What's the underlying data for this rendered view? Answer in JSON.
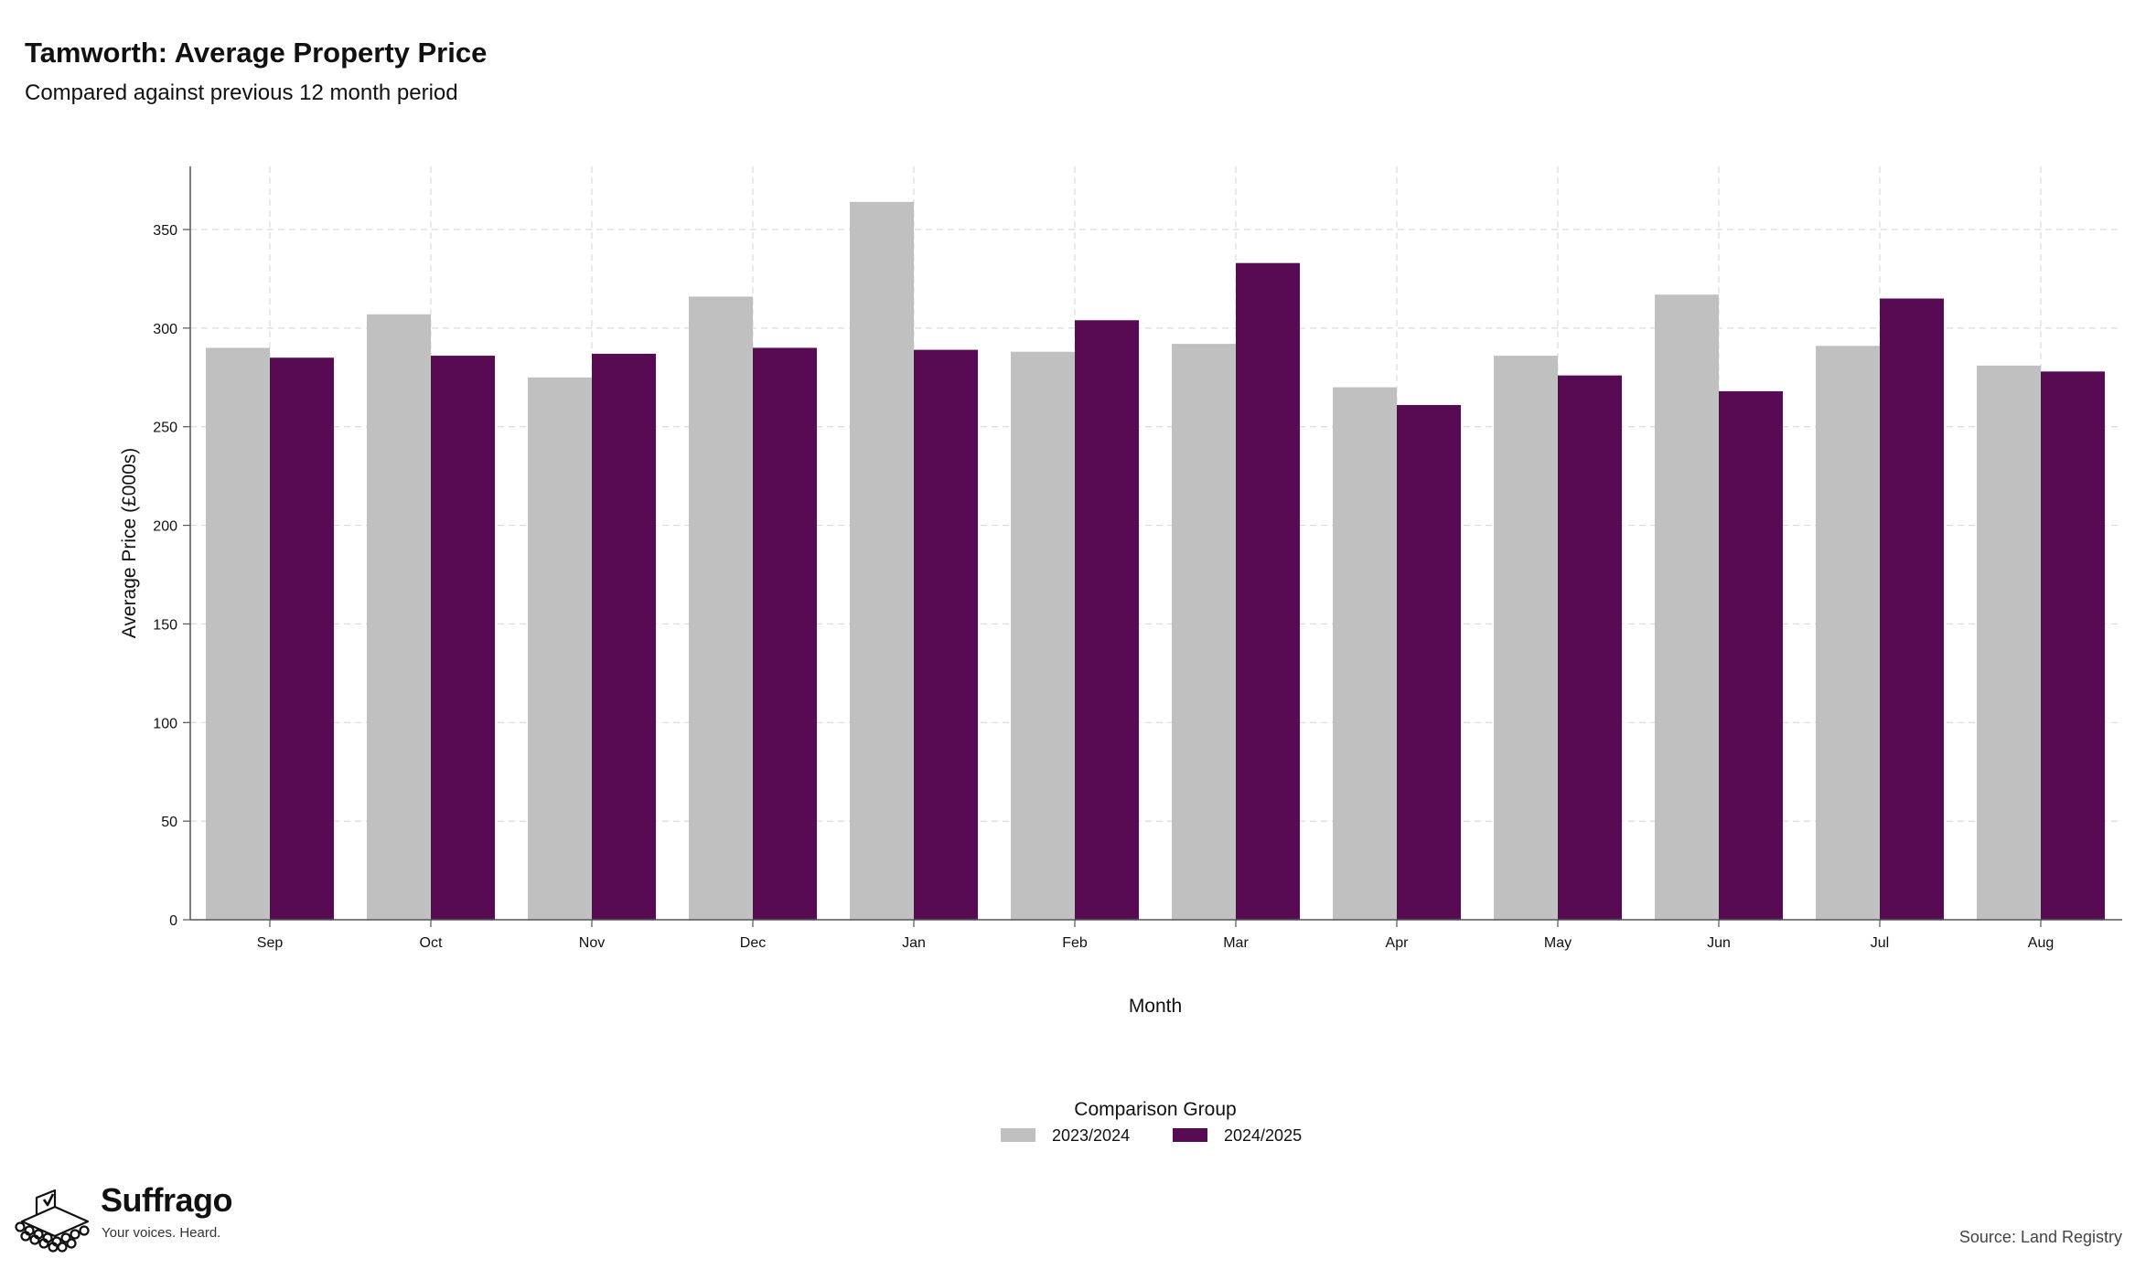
{
  "title": "Tamworth: Average Property Price",
  "subtitle": "Compared against previous 12 month period",
  "source": "Source: Land Registry",
  "brand": {
    "name": "Suffrago",
    "tagline": "Your voices. Heard."
  },
  "colors": {
    "series_2023": "#c0c0c0",
    "series_2024": "#560b52",
    "grid": "#dcdcdc",
    "axis": "#555555"
  },
  "chart_data": {
    "type": "bar",
    "title": "Tamworth: Average Property Price",
    "subtitle": "Compared against previous 12 month period",
    "xlabel": "Month",
    "ylabel": "Average Price (£000s)",
    "categories": [
      "Sep",
      "Oct",
      "Nov",
      "Dec",
      "Jan",
      "Feb",
      "Mar",
      "Apr",
      "May",
      "Jun",
      "Jul",
      "Aug"
    ],
    "series": [
      {
        "name": "2023/2024",
        "values": [
          290,
          307,
          275,
          316,
          364,
          288,
          292,
          270,
          286,
          317,
          291,
          281
        ]
      },
      {
        "name": "2024/2025",
        "values": [
          285,
          286,
          287,
          290,
          289,
          304,
          333,
          261,
          276,
          268,
          315,
          278
        ]
      }
    ],
    "yticks": [
      0,
      50,
      100,
      150,
      200,
      250,
      300,
      350
    ],
    "ylim": [
      0,
      382
    ],
    "grid": true,
    "legend": {
      "title": "Comparison Group",
      "position": "bottom"
    }
  }
}
